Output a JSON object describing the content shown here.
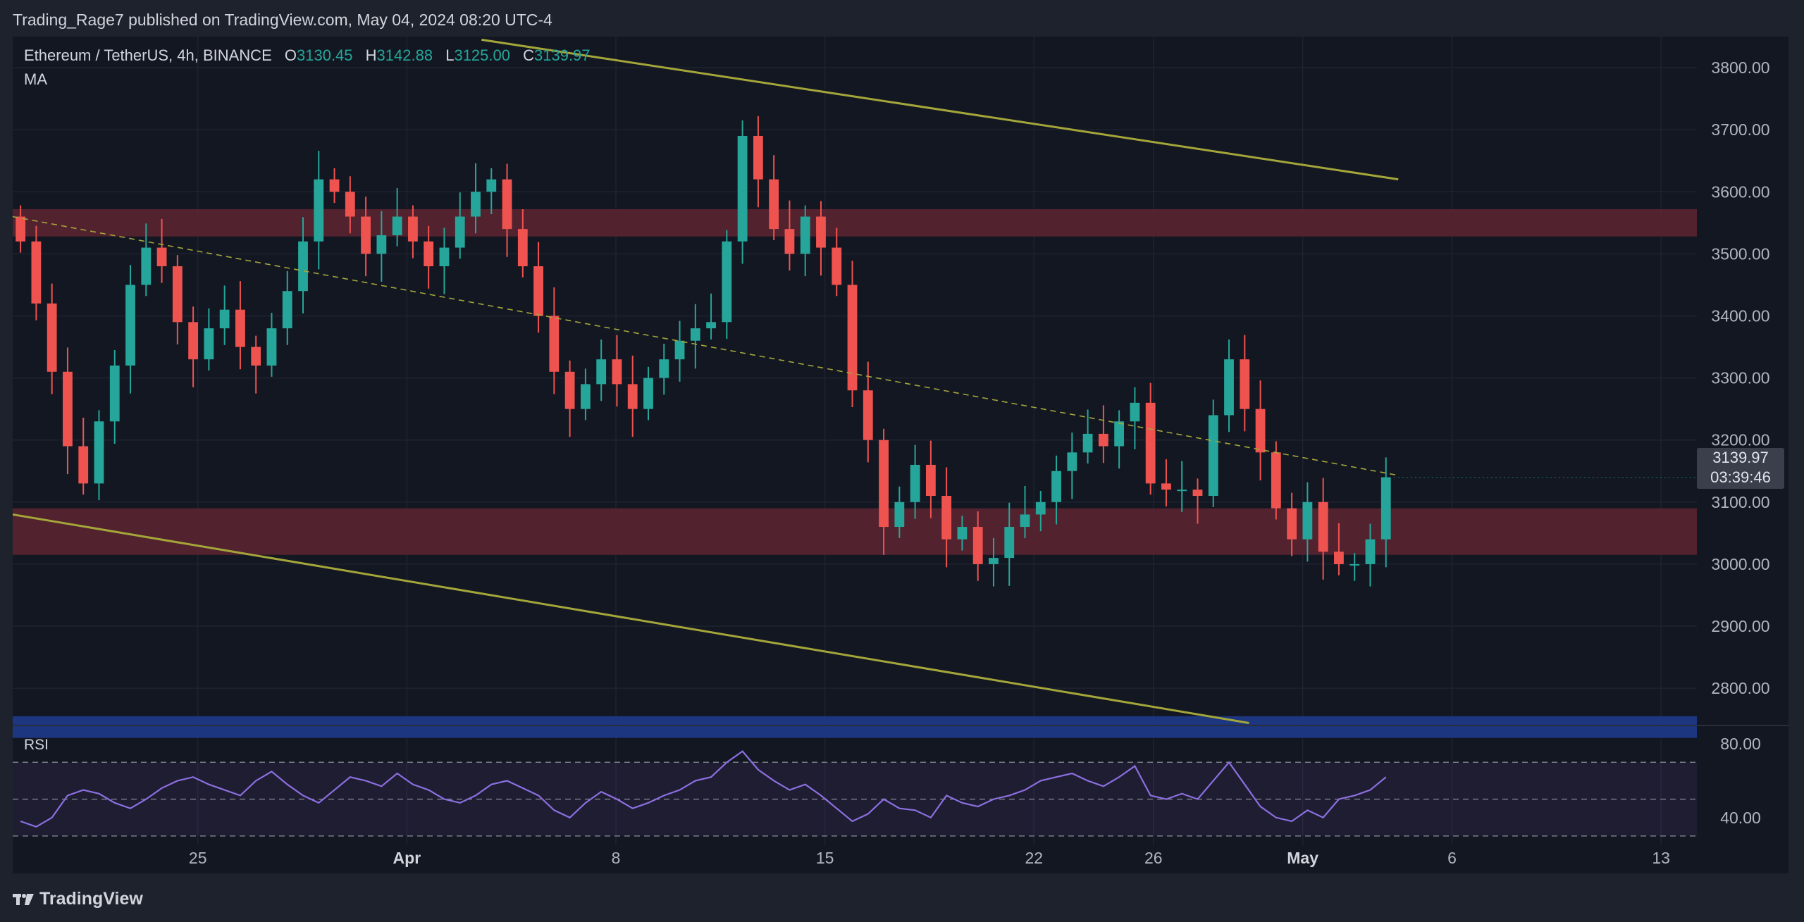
{
  "header": {
    "publisher_line": "Trading_Rage7 published on TradingView.com, May 04, 2024 08:20 UTC-4"
  },
  "legend": {
    "symbol": "Ethereum / TetherUS, 4h, BINANCE",
    "open_label": "O",
    "open": "3130.45",
    "high_label": "H",
    "high": "3142.88",
    "low_label": "L",
    "low": "3125.00",
    "close_label": "C",
    "close": "3139.97",
    "indicator": "MA"
  },
  "price_tag": {
    "price": "3139.97",
    "countdown": "03:39:46"
  },
  "rsi": {
    "label": "RSI",
    "tick_labels": [
      "80.00",
      "40.00"
    ]
  },
  "branding": {
    "logo_text": "TradingView"
  },
  "colors": {
    "up": "#26a69a",
    "down": "#ef5350",
    "zone_resistance": "#5a2330",
    "zone_support_blue": "#1e3a8a",
    "trendline": "#a4a63a",
    "rsi_line": "#8c6fe0"
  },
  "chart_data": {
    "type": "candlestick",
    "timeframe": "4h",
    "ylim": [
      2740,
      3850
    ],
    "y_ticks": [
      "3800.00",
      "3700.00",
      "3600.00",
      "3500.00",
      "3400.00",
      "3300.00",
      "3200.00",
      "3100.00",
      "3000.00",
      "2900.00",
      "2800.00"
    ],
    "x_ticks": [
      {
        "label": "25",
        "t": 5.0
      },
      {
        "label": "Apr",
        "t": 12.0
      },
      {
        "label": "8",
        "t": 19.0
      },
      {
        "label": "15",
        "t": 26.0
      },
      {
        "label": "22",
        "t": 33.0
      },
      {
        "label": "26",
        "t": 37.0
      },
      {
        "label": "May",
        "t": 42.0
      },
      {
        "label": "6",
        "t": 47.0
      },
      {
        "label": "13",
        "t": 54.0
      }
    ],
    "x_range_days": [
      -1.2,
      55.2
    ],
    "bold_ticks": [
      "Apr",
      "May"
    ],
    "zones": [
      {
        "name": "resistance",
        "from": 3528,
        "to": 3572
      },
      {
        "name": "support",
        "from": 3015,
        "to": 3090
      },
      {
        "name": "demand",
        "from": 2720,
        "to": 2755
      }
    ],
    "trendlines": [
      {
        "style": "solid",
        "from": {
          "t": 14.5,
          "p": 3845
        },
        "to": {
          "t": 45.2,
          "p": 3620
        }
      },
      {
        "style": "solid",
        "from": {
          "t": -1.2,
          "p": 3080
        },
        "to": {
          "t": 40.2,
          "p": 2744
        }
      },
      {
        "style": "dashed",
        "from": {
          "t": -1.2,
          "p": 3560
        },
        "to": {
          "t": 45.2,
          "p": 3143
        }
      }
    ],
    "closes": [
      3520,
      3420,
      3310,
      3190,
      3130,
      3230,
      3320,
      3450,
      3510,
      3480,
      3390,
      3330,
      3380,
      3410,
      3350,
      3320,
      3380,
      3440,
      3520,
      3620,
      3600,
      3560,
      3500,
      3530,
      3560,
      3520,
      3480,
      3510,
      3560,
      3600,
      3620,
      3540,
      3480,
      3400,
      3310,
      3250,
      3290,
      3330,
      3290,
      3250,
      3300,
      3330,
      3360,
      3380,
      3390,
      3520,
      3690,
      3620,
      3540,
      3500,
      3560,
      3510,
      3450,
      3280,
      3200,
      3060,
      3100,
      3160,
      3110,
      3040,
      3060,
      3000,
      3010,
      3060,
      3080,
      3100,
      3150,
      3180,
      3210,
      3190,
      3230,
      3260,
      3130,
      3120,
      3120,
      3110,
      3240,
      3330,
      3250,
      3180,
      3090,
      3040,
      3100,
      3020,
      3000,
      3000,
      3040,
      3140
    ],
    "candle_count": 88,
    "rsi_values": [
      38,
      35,
      40,
      52,
      55,
      53,
      48,
      45,
      50,
      56,
      60,
      62,
      58,
      55,
      52,
      60,
      65,
      58,
      52,
      48,
      55,
      62,
      60,
      57,
      64,
      58,
      55,
      50,
      48,
      52,
      58,
      60,
      56,
      52,
      44,
      40,
      48,
      54,
      50,
      45,
      48,
      52,
      55,
      60,
      62,
      70,
      76,
      66,
      60,
      55,
      58,
      52,
      45,
      38,
      42,
      50,
      45,
      44,
      40,
      52,
      48,
      46,
      50,
      52,
      55,
      60,
      62,
      64,
      60,
      57,
      62,
      68,
      52,
      50,
      53,
      50,
      60,
      70,
      58,
      46,
      40,
      38,
      44,
      40,
      50,
      52,
      55,
      62
    ],
    "rsi_ylim": [
      25,
      90
    ],
    "rsi_band": [
      30,
      70
    ],
    "rsi_mid": 50
  }
}
